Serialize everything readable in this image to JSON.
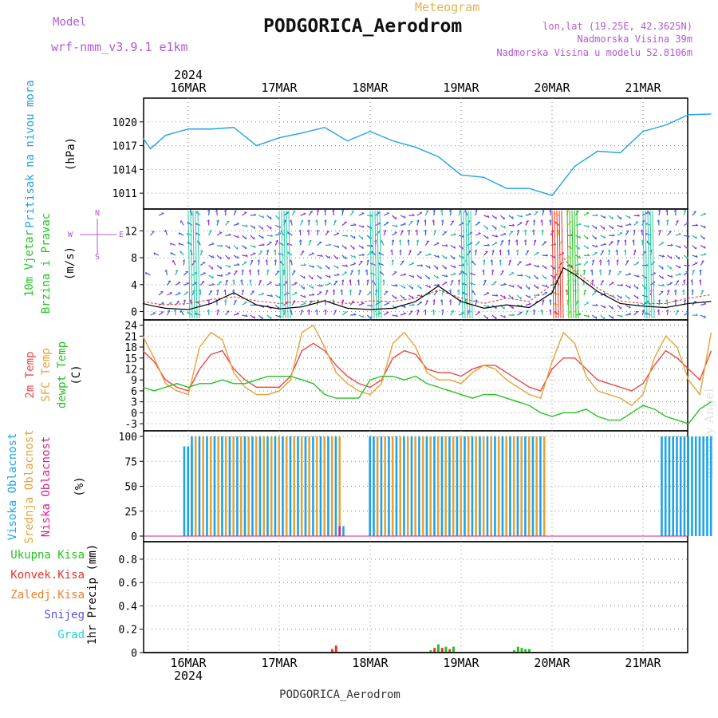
{
  "header": {
    "model_label": "Model",
    "model_name": "wrf-nmm_v3.9.1 e1km",
    "meteogram_label": "Meteogram",
    "station_title": "PODGORICA_Aerodrom",
    "lonlat": "lon,lat (19.25E, 42.3625N)",
    "elevation": "Nadmorska Visina 39m",
    "model_elevation": "Nadmorska Visina u modelu 52.8106m",
    "footer_station": "PODGORICA_Aerodrom",
    "signature": "made by Angel",
    "year": "2024",
    "day_labels": [
      "16MAR",
      "17MAR",
      "18MAR",
      "19MAR",
      "20MAR",
      "21MAR"
    ]
  },
  "colors": {
    "pressure": "#1fa3e6",
    "wind_speed": "#000000",
    "wind_gust": "#e8332a",
    "temp_2m": "#ee4545",
    "temp_sfc": "#e3a33a",
    "dewpoint": "#22c322",
    "cloud_high": "#1fa3e6",
    "cloud_mid": "#e3a33a",
    "cloud_low": "#d4218a",
    "precip_total": "#22c322",
    "precip_conv": "#e8332a",
    "precip_frozen": "#f07d2a",
    "precip_snow": "#5a4fe0",
    "precip_graupel": "#2ad0d0",
    "model_text": "#b259d4"
  },
  "chart_data": [
    {
      "type": "line",
      "panel": "pressure",
      "ylabel": [
        "Pritisak na nivou mora",
        "(hPa)"
      ],
      "yticks": [
        1011,
        1014,
        1017,
        1020
      ],
      "ylim": [
        1009.5,
        1022.5
      ],
      "x_unit": "hours from 2024-03-16 00:00 UTC",
      "x": [
        -12,
        -10,
        -6,
        0,
        6,
        12,
        18,
        24,
        30,
        36,
        42,
        48,
        54,
        60,
        66,
        72,
        78,
        84,
        90,
        96,
        102,
        108,
        114,
        120,
        126,
        132,
        138
      ],
      "values": [
        1018.0,
        1016.6,
        1018.3,
        1019.1,
        1019.1,
        1019.3,
        1017.0,
        1018.0,
        1018.6,
        1019.3,
        1017.6,
        1018.8,
        1017.6,
        1016.8,
        1015.6,
        1013.3,
        1013.0,
        1011.6,
        1011.6,
        1010.7,
        1014.4,
        1016.3,
        1016.1,
        1018.8,
        1019.6,
        1020.9,
        1021.0
      ]
    },
    {
      "type": "line",
      "panel": "wind",
      "ylabel": [
        "10m Vjetar",
        "Brzina i Pravac",
        "(m/s)"
      ],
      "compass": [
        "N",
        "W",
        "E",
        "S"
      ],
      "yticks": [
        0,
        4,
        8,
        12
      ],
      "ylim": [
        -1,
        15
      ],
      "x_unit": "hours from 2024-03-16 00:00 UTC",
      "x": [
        -12,
        -9,
        -6,
        0,
        6,
        12,
        18,
        24,
        30,
        36,
        42,
        48,
        54,
        60,
        66,
        72,
        78,
        84,
        90,
        96,
        99,
        102,
        108,
        114,
        120,
        126,
        132,
        138
      ],
      "values": [
        1.2,
        0.8,
        0.5,
        0.3,
        1.2,
        2.8,
        1.0,
        0.4,
        0.7,
        1.6,
        0.5,
        0.3,
        0.5,
        1.5,
        3.8,
        1.5,
        0.5,
        1.0,
        0.6,
        2.8,
        6.5,
        5.5,
        3.0,
        1.2,
        0.8,
        0.6,
        1.2,
        1.5
      ],
      "gust_values": [
        1.5,
        1.2,
        1.0,
        1.2,
        1.8,
        2.2,
        1.6,
        1.2,
        1.5,
        1.6,
        1.2,
        1.6,
        1.5,
        2.0,
        3.2,
        2.0,
        1.2,
        2.0,
        1.5,
        4.0,
        8.0,
        6.0,
        3.5,
        1.6,
        1.2,
        1.2,
        2.0,
        2.5
      ]
    },
    {
      "type": "line",
      "panel": "temperature",
      "ylabel": [
        "2m Temp",
        "SFC Temp",
        "dewpt Temp",
        "(C)"
      ],
      "yticks": [
        -3,
        0,
        3,
        6,
        9,
        12,
        15,
        18,
        21,
        24
      ],
      "ylim": [
        -4.5,
        25
      ],
      "x_unit": "hours from 2024-03-16 00:00 UTC",
      "x": [
        -12,
        -9,
        -6,
        -3,
        0,
        3,
        6,
        9,
        12,
        15,
        18,
        21,
        24,
        27,
        30,
        33,
        36,
        39,
        42,
        45,
        48,
        51,
        54,
        57,
        60,
        63,
        66,
        69,
        72,
        75,
        78,
        81,
        84,
        87,
        90,
        93,
        96,
        99,
        102,
        105,
        108,
        111,
        114,
        117,
        120,
        123,
        126,
        129,
        132,
        135,
        138
      ],
      "series": [
        {
          "name": "2m Temp",
          "values": [
            17,
            14,
            9,
            7,
            6,
            12,
            16,
            17,
            12,
            9,
            7,
            7,
            7,
            10,
            17,
            19,
            17,
            13,
            10,
            8,
            7,
            9,
            15,
            17,
            16,
            12,
            11,
            11,
            10,
            12,
            13,
            13,
            11,
            9,
            7,
            6,
            12,
            15,
            15,
            12,
            9,
            8,
            7,
            6,
            8,
            13,
            17,
            15,
            12,
            9,
            17
          ]
        },
        {
          "name": "SFC Temp",
          "values": [
            21,
            15,
            8,
            6,
            5,
            18,
            22,
            20,
            11,
            7,
            5,
            5,
            6,
            9,
            22,
            24,
            18,
            11,
            8,
            6,
            5,
            8,
            19,
            22,
            18,
            11,
            9,
            9,
            8,
            11,
            13,
            12,
            9,
            7,
            5,
            4,
            14,
            22,
            19,
            10,
            6,
            5,
            4,
            2,
            5,
            15,
            21,
            18,
            9,
            5,
            22
          ]
        },
        {
          "name": "dewpt Temp",
          "values": [
            7,
            6,
            7,
            8,
            7,
            8,
            8,
            9,
            8,
            8,
            9,
            10,
            10,
            10,
            9,
            8,
            5,
            4,
            4,
            4,
            9,
            10,
            10,
            9,
            10,
            8,
            7,
            6,
            5,
            4,
            5,
            5,
            4,
            3,
            2,
            0,
            -1,
            0,
            0,
            1,
            -1,
            -2,
            -2,
            0,
            2,
            1,
            -1,
            -2,
            -3,
            1,
            3
          ]
        }
      ]
    },
    {
      "type": "bar",
      "panel": "cloud",
      "ylabel": [
        "Visoka Oblacnost",
        "Srednja Oblacnost",
        "Niska Oblacnost",
        "(%)"
      ],
      "yticks": [
        0,
        25,
        50,
        75,
        100
      ],
      "ylim": [
        -4,
        104
      ],
      "x_unit": "hours from 2024-03-16 00:00 UTC",
      "segments": [
        {
          "name": "Visoka Oblacnost",
          "start": -1,
          "end": 1,
          "value": 90
        },
        {
          "name": "Srednja Oblacnost",
          "start": 1,
          "end": 40,
          "value": 100
        },
        {
          "name": "Niska Oblacnost",
          "start": 40,
          "end": 41,
          "value": 10
        },
        {
          "name": "Visoka Oblacnost",
          "start": 48,
          "end": 50,
          "value": 100
        },
        {
          "name": "Srednja Oblacnost",
          "start": 50,
          "end": 94,
          "value": 100
        },
        {
          "name": "Visoka Oblacnost",
          "start": 125,
          "end": 138,
          "value": 100
        }
      ]
    },
    {
      "type": "bar",
      "panel": "precip",
      "ylabel": [
        "Ukupna Kisa",
        "Konvek.Kisa",
        "Zaledj.Kisa",
        "Snijeg",
        "Grad",
        "1hr Precip (mm)"
      ],
      "yticks": [
        0,
        0.2,
        0.4,
        0.6,
        0.8
      ],
      "ylim": [
        0,
        0.95
      ],
      "x_unit": "hours from 2024-03-16 00:00 UTC",
      "bars": [
        {
          "x": 38,
          "value": 0.03,
          "series": "Konvek.Kisa"
        },
        {
          "x": 39,
          "value": 0.06,
          "series": "Konvek.Kisa"
        },
        {
          "x": 64,
          "value": 0.02,
          "series": "Ukupna Kisa"
        },
        {
          "x": 65,
          "value": 0.04,
          "series": "Konvek.Kisa"
        },
        {
          "x": 66,
          "value": 0.07,
          "series": "Ukupna Kisa"
        },
        {
          "x": 67,
          "value": 0.04,
          "series": "Konvek.Kisa"
        },
        {
          "x": 68,
          "value": 0.05,
          "series": "Ukupna Kisa"
        },
        {
          "x": 69,
          "value": 0.03,
          "series": "Konvek.Kisa"
        },
        {
          "x": 70,
          "value": 0.05,
          "series": "Ukupna Kisa"
        },
        {
          "x": 86,
          "value": 0.02,
          "series": "Ukupna Kisa"
        },
        {
          "x": 87,
          "value": 0.05,
          "series": "Ukupna Kisa"
        },
        {
          "x": 88,
          "value": 0.04,
          "series": "Ukupna Kisa"
        },
        {
          "x": 89,
          "value": 0.03,
          "series": "Ukupna Kisa"
        },
        {
          "x": 90,
          "value": 0.03,
          "series": "Ukupna Kisa"
        }
      ]
    }
  ]
}
